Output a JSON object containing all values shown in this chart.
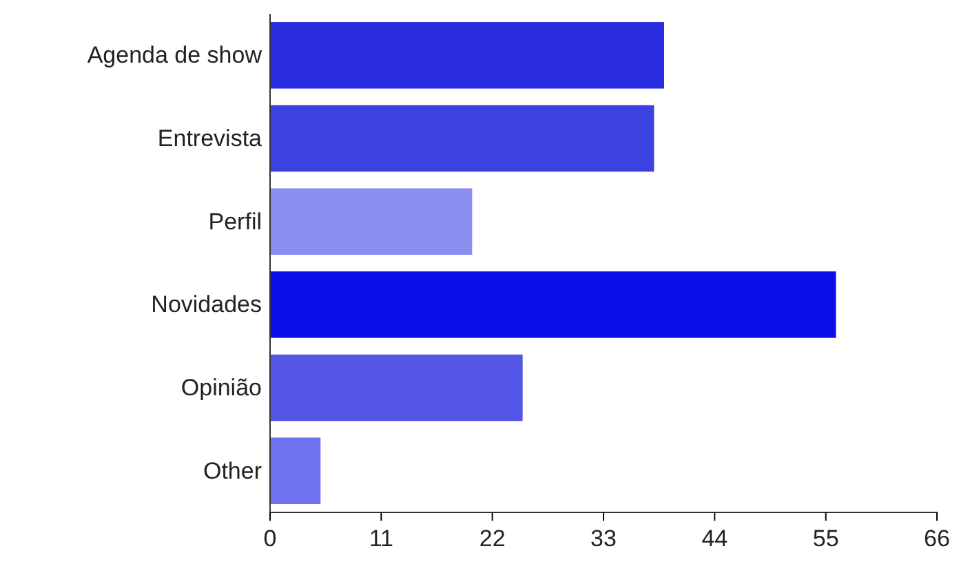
{
  "chart_data": {
    "type": "bar",
    "orientation": "horizontal",
    "categories": [
      "Agenda de show",
      "Entrevista",
      "Perfil",
      "Novidades",
      "Opinião",
      "Other"
    ],
    "values": [
      39,
      38,
      20,
      56,
      25,
      5
    ],
    "colors": [
      "#2a2ee0",
      "#3c41e2",
      "#8b8df0",
      "#0b0ee6",
      "#5457e6",
      "#6f72ee"
    ],
    "xlim": [
      0,
      66
    ],
    "xticks": [
      0,
      11,
      22,
      33,
      44,
      55,
      66
    ],
    "grid": false
  }
}
